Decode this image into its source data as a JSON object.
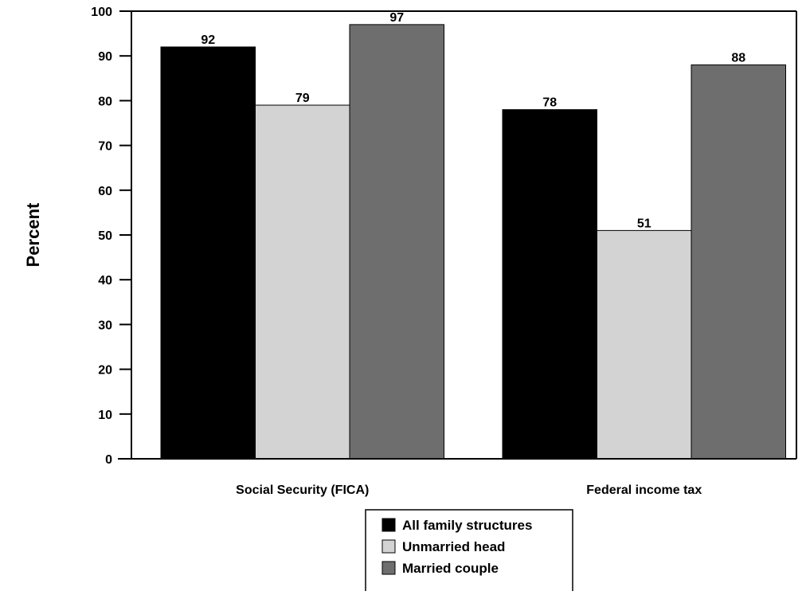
{
  "chart_data": {
    "type": "bar",
    "categories": [
      "Social Security (FICA)",
      "Federal income tax"
    ],
    "series": [
      {
        "name": "All family structures",
        "values": [
          92,
          78
        ]
      },
      {
        "name": "Unmarried head",
        "values": [
          79,
          51
        ]
      },
      {
        "name": "Married couple",
        "values": [
          97,
          88
        ]
      }
    ],
    "ylabel": "Percent",
    "xlabel": "",
    "ylim": [
      0,
      100
    ],
    "yticks": [
      0,
      10,
      20,
      30,
      40,
      50,
      60,
      70,
      80,
      90,
      100
    ],
    "grid": false,
    "legend_position": "bottom-center",
    "data_labels": true,
    "colors": [
      "#000000",
      "#d3d3d3",
      "#6e6e6e"
    ]
  }
}
